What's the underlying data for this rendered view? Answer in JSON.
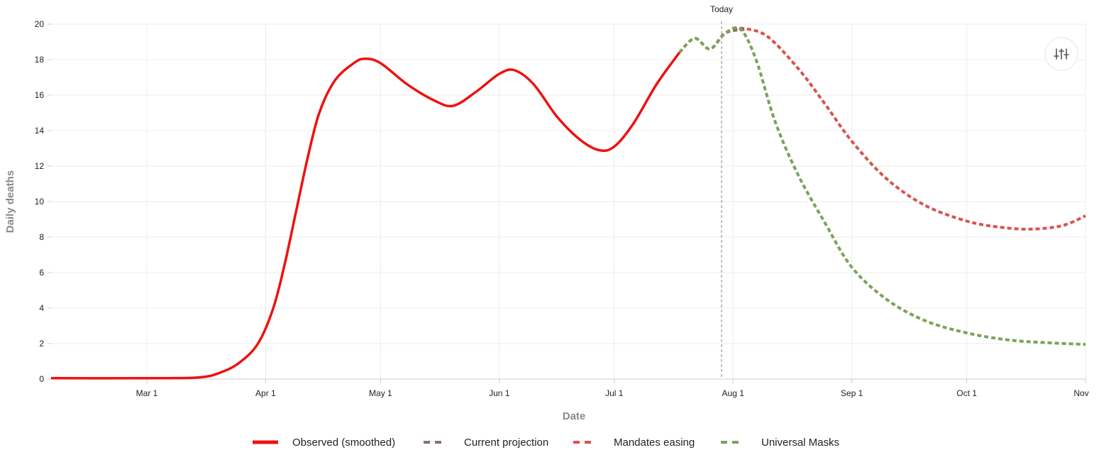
{
  "chart_data": {
    "type": "line",
    "xlabel": "Date",
    "ylabel": "Daily deaths",
    "x_range": [
      "2020-02-05",
      "2020-11-01"
    ],
    "ylim": [
      0,
      20
    ],
    "y_ticks": [
      0,
      2,
      4,
      6,
      8,
      10,
      12,
      14,
      16,
      18,
      20
    ],
    "x_ticks": [
      {
        "date": "2020-03-01",
        "label": "Mar 1"
      },
      {
        "date": "2020-04-01",
        "label": "Apr 1"
      },
      {
        "date": "2020-05-01",
        "label": "May 1"
      },
      {
        "date": "2020-06-01",
        "label": "Jun 1"
      },
      {
        "date": "2020-07-01",
        "label": "Jul 1"
      },
      {
        "date": "2020-08-01",
        "label": "Aug 1"
      },
      {
        "date": "2020-09-01",
        "label": "Sep 1"
      },
      {
        "date": "2020-10-01",
        "label": "Oct 1"
      },
      {
        "date": "2020-11-01",
        "label": "Nov"
      }
    ],
    "today": {
      "date": "2020-07-29",
      "label": "Today"
    },
    "grid": true,
    "legend_position": "bottom",
    "series": [
      {
        "name": "Observed (smoothed)",
        "color": "#ee1111",
        "style": "solid",
        "points": [
          [
            "2020-02-05",
            0.05
          ],
          [
            "2020-03-05",
            0.05
          ],
          [
            "2020-03-15",
            0.1
          ],
          [
            "2020-03-20",
            0.35
          ],
          [
            "2020-03-25",
            0.9
          ],
          [
            "2020-03-30",
            2.0
          ],
          [
            "2020-04-03",
            4.0
          ],
          [
            "2020-04-06",
            6.5
          ],
          [
            "2020-04-09",
            9.5
          ],
          [
            "2020-04-12",
            12.5
          ],
          [
            "2020-04-15",
            15.0
          ],
          [
            "2020-04-19",
            16.8
          ],
          [
            "2020-04-24",
            17.8
          ],
          [
            "2020-04-27",
            18.05
          ],
          [
            "2020-05-01",
            17.8
          ],
          [
            "2020-05-08",
            16.6
          ],
          [
            "2020-05-15",
            15.7
          ],
          [
            "2020-05-20",
            15.4
          ],
          [
            "2020-05-26",
            16.2
          ],
          [
            "2020-06-01",
            17.2
          ],
          [
            "2020-06-05",
            17.4
          ],
          [
            "2020-06-10",
            16.6
          ],
          [
            "2020-06-16",
            14.8
          ],
          [
            "2020-06-22",
            13.5
          ],
          [
            "2020-06-27",
            12.9
          ],
          [
            "2020-07-01",
            13.1
          ],
          [
            "2020-07-06",
            14.4
          ],
          [
            "2020-07-12",
            16.6
          ],
          [
            "2020-07-18",
            18.4
          ]
        ]
      },
      {
        "name": "Current projection",
        "color": "#8d6e72",
        "style": "dashed",
        "points": [
          [
            "2020-07-18",
            18.4
          ],
          [
            "2020-07-22",
            19.2
          ],
          [
            "2020-07-26",
            18.6
          ],
          [
            "2020-07-30",
            19.5
          ],
          [
            "2020-08-04",
            19.7
          ]
        ]
      },
      {
        "name": "Mandates easing",
        "color": "#d9534f",
        "style": "dashed",
        "points": [
          [
            "2020-08-01",
            19.7
          ],
          [
            "2020-08-04",
            19.75
          ],
          [
            "2020-08-10",
            19.3
          ],
          [
            "2020-08-18",
            17.5
          ],
          [
            "2020-08-25",
            15.5
          ],
          [
            "2020-09-01",
            13.4
          ],
          [
            "2020-09-10",
            11.3
          ],
          [
            "2020-09-20",
            9.8
          ],
          [
            "2020-10-01",
            8.9
          ],
          [
            "2020-10-10",
            8.55
          ],
          [
            "2020-10-18",
            8.45
          ],
          [
            "2020-10-26",
            8.65
          ],
          [
            "2020-11-01",
            9.2
          ]
        ]
      },
      {
        "name": "Universal Masks",
        "color": "#7aa35a",
        "style": "dashed",
        "points": [
          [
            "2020-07-18",
            18.4
          ],
          [
            "2020-07-22",
            19.2
          ],
          [
            "2020-07-26",
            18.6
          ],
          [
            "2020-07-30",
            19.5
          ],
          [
            "2020-08-03",
            19.7
          ],
          [
            "2020-08-07",
            18.0
          ],
          [
            "2020-08-12",
            14.5
          ],
          [
            "2020-08-18",
            11.5
          ],
          [
            "2020-08-25",
            8.8
          ],
          [
            "2020-09-01",
            6.3
          ],
          [
            "2020-09-10",
            4.5
          ],
          [
            "2020-09-20",
            3.3
          ],
          [
            "2020-10-01",
            2.6
          ],
          [
            "2020-10-12",
            2.2
          ],
          [
            "2020-10-22",
            2.05
          ],
          [
            "2020-11-01",
            1.95
          ]
        ]
      }
    ]
  },
  "controls": {
    "settings_icon": "sliders-icon"
  }
}
